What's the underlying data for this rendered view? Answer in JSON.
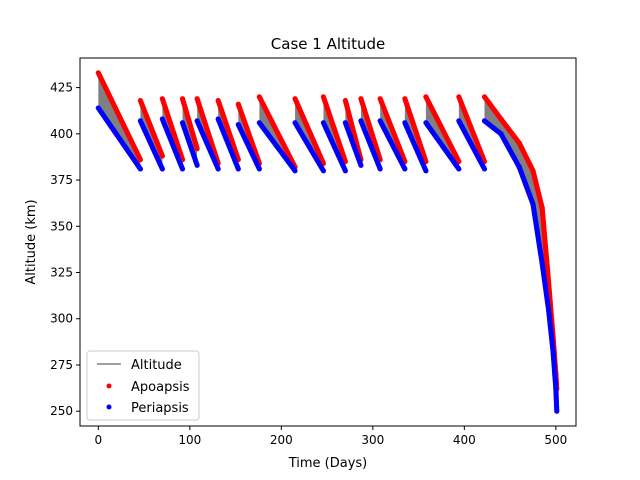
{
  "chart_data": {
    "type": "line",
    "title": "Case 1 Altitude",
    "xlabel": "Time (Days)",
    "ylabel": "Altitude (km)",
    "xlim": [
      -20,
      522
    ],
    "ylim": [
      242,
      441
    ],
    "xticks": [
      0,
      100,
      200,
      300,
      400,
      500
    ],
    "yticks": [
      250,
      275,
      300,
      325,
      350,
      375,
      400,
      425
    ],
    "grid": false,
    "legend_position": "lower-left",
    "series": [
      {
        "name": "Altitude",
        "style": "band",
        "color": "#808080",
        "cycles": [
          {
            "x": [
              0,
              46
            ],
            "top": [
              433,
              386
            ],
            "bottom": [
              414,
              381
            ]
          },
          {
            "x": [
              46,
              70
            ],
            "top": [
              418,
              388
            ],
            "bottom": [
              407,
              381
            ]
          },
          {
            "x": [
              70,
              92
            ],
            "top": [
              419,
              386
            ],
            "bottom": [
              408,
              381
            ]
          },
          {
            "x": [
              92,
              108
            ],
            "top": [
              419,
              392
            ],
            "bottom": [
              406,
              383
            ]
          },
          {
            "x": [
              108,
              131
            ],
            "top": [
              419,
              384
            ],
            "bottom": [
              407,
              381
            ]
          },
          {
            "x": [
              131,
              153
            ],
            "top": [
              418,
              386
            ],
            "bottom": [
              408,
              381
            ]
          },
          {
            "x": [
              153,
              176
            ],
            "top": [
              416,
              384
            ],
            "bottom": [
              405,
              381
            ]
          },
          {
            "x": [
              176,
              215
            ],
            "top": [
              420,
              382
            ],
            "bottom": [
              406,
              380
            ]
          },
          {
            "x": [
              215,
              246
            ],
            "top": [
              419,
              384
            ],
            "bottom": [
              406,
              380
            ]
          },
          {
            "x": [
              246,
              270
            ],
            "top": [
              420,
              385
            ],
            "bottom": [
              406,
              380
            ]
          },
          {
            "x": [
              270,
              287
            ],
            "top": [
              418,
              386
            ],
            "bottom": [
              406,
              383
            ]
          },
          {
            "x": [
              287,
              308
            ],
            "top": [
              419,
              386
            ],
            "bottom": [
              407,
              381
            ]
          },
          {
            "x": [
              308,
              335
            ],
            "top": [
              419,
              385
            ],
            "bottom": [
              407,
              381
            ]
          },
          {
            "x": [
              335,
              358
            ],
            "top": [
              419,
              385
            ],
            "bottom": [
              406,
              380
            ]
          },
          {
            "x": [
              358,
              394
            ],
            "top": [
              420,
              385
            ],
            "bottom": [
              406,
              381
            ]
          },
          {
            "x": [
              394,
              422
            ],
            "top": [
              420,
              385
            ],
            "bottom": [
              407,
              381
            ]
          }
        ],
        "final_decay": {
          "x": [
            422,
            440,
            460,
            475,
            485,
            492,
            497,
            500,
            501
          ],
          "top": [
            420,
            408,
            395,
            380,
            360,
            320,
            290,
            270,
            262
          ],
          "bottom": [
            407,
            400,
            382,
            362,
            330,
            305,
            282,
            262,
            250
          ]
        }
      },
      {
        "name": "Apoapsis",
        "style": "points",
        "color": "#ff0000"
      },
      {
        "name": "Periapsis",
        "style": "points",
        "color": "#0000ff"
      }
    ]
  }
}
